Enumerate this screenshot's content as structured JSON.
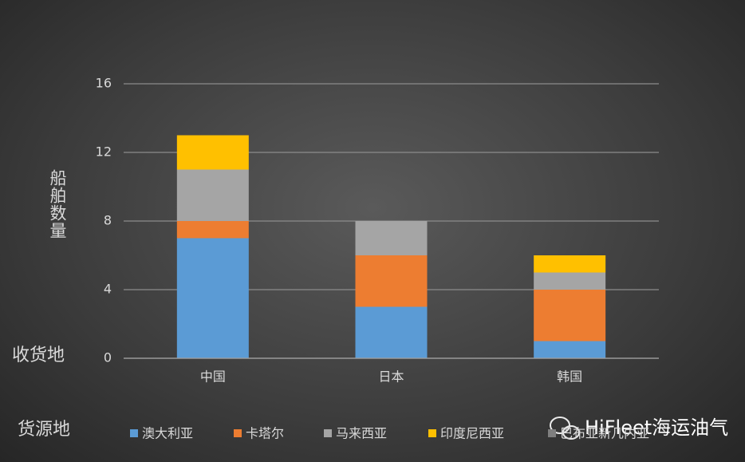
{
  "chart_data": {
    "type": "bar",
    "stacked": true,
    "y_label": "船舶数量",
    "x_label": "收货地",
    "legend_title": "货源地",
    "categories": [
      "中国",
      "日本",
      "韩国"
    ],
    "series": [
      {
        "name": "澳大利亚",
        "color": "#5b9bd5",
        "values": [
          7,
          3,
          1
        ]
      },
      {
        "name": "卡塔尔",
        "color": "#ed7d31",
        "values": [
          1,
          3,
          3
        ]
      },
      {
        "name": "马来西亚",
        "color": "#a5a5a5",
        "values": [
          3,
          2,
          1
        ]
      },
      {
        "name": "印度尼西亚",
        "color": "#ffc000",
        "values": [
          2,
          0,
          1
        ]
      },
      {
        "name": "巴布亚新几内亚",
        "color": "#7f7f7f",
        "values": [
          0,
          0,
          0
        ]
      }
    ],
    "ylim": [
      0,
      16
    ],
    "yticks": [
      0,
      4,
      8,
      12,
      16
    ],
    "grid": true
  },
  "watermark": "HiFleet海运油气"
}
